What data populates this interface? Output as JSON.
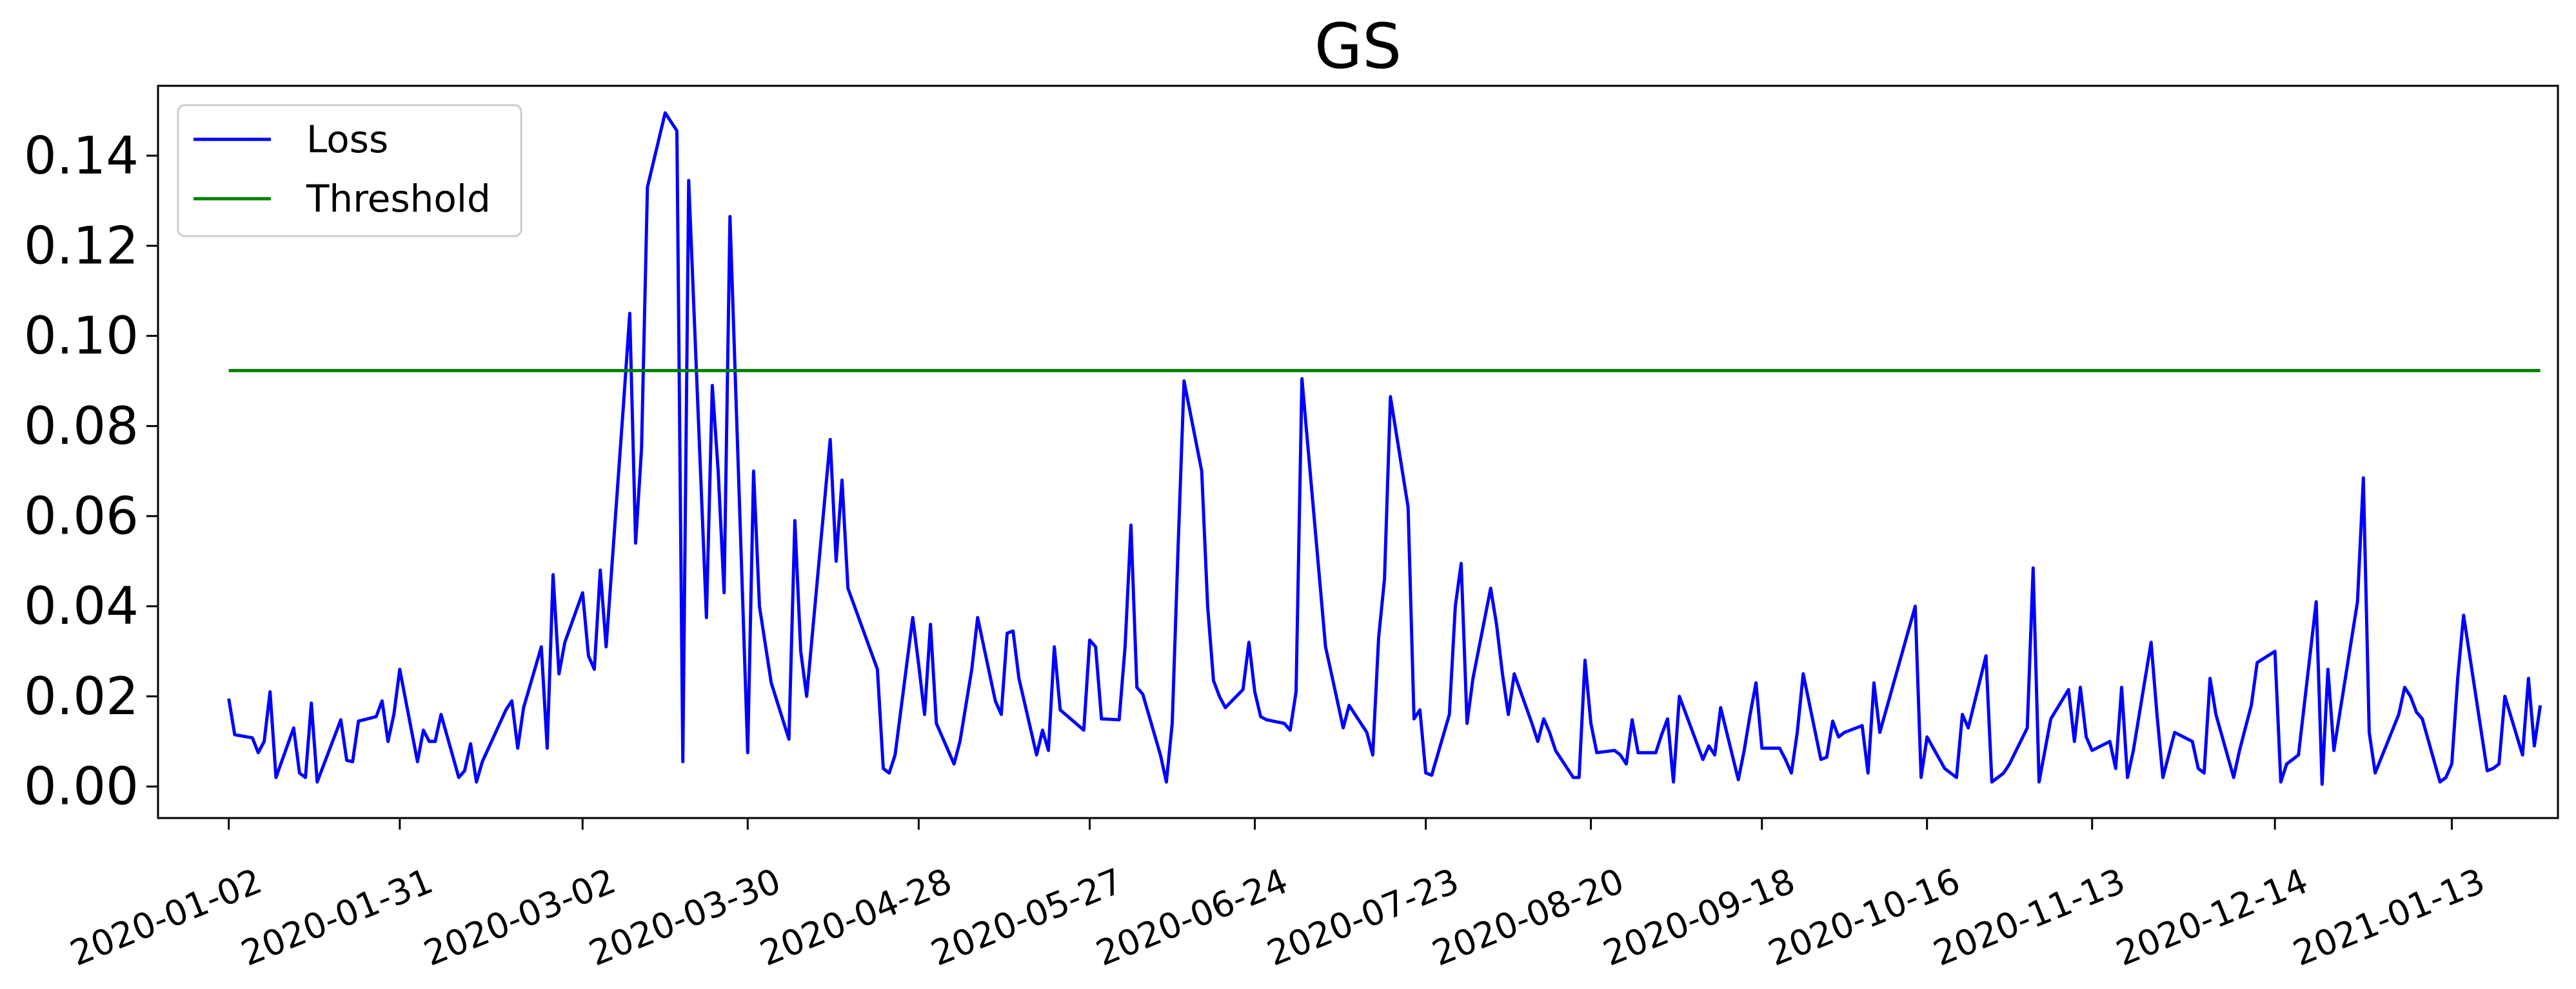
{
  "chart_data": {
    "type": "line",
    "title": "GS",
    "xlabel": "",
    "ylabel": "",
    "grid": false,
    "legend_position": "top-left",
    "ylim": [
      -0.007,
      0.1555
    ],
    "xlim": [
      "2019-12-21",
      "2021-01-31"
    ],
    "x_ticks": [
      "2020-01-02",
      "2020-01-31",
      "2020-03-02",
      "2020-03-30",
      "2020-04-28",
      "2020-05-27",
      "2020-06-24",
      "2020-07-23",
      "2020-08-20",
      "2020-09-18",
      "2020-10-16",
      "2020-11-13",
      "2020-12-14",
      "2021-01-13"
    ],
    "y_ticks": [
      "0.00",
      "0.02",
      "0.04",
      "0.06",
      "0.08",
      "0.10",
      "0.12",
      "0.14"
    ],
    "series": [
      {
        "name": "Loss",
        "color": "#0000ff",
        "points": [
          [
            "2020-01-02",
            0.0195
          ],
          [
            "2020-01-03",
            0.0115
          ],
          [
            "2020-01-06",
            0.0108
          ],
          [
            "2020-01-07",
            0.0075
          ],
          [
            "2020-01-08",
            0.01
          ],
          [
            "2020-01-09",
            0.021
          ],
          [
            "2020-01-10",
            0.002
          ],
          [
            "2020-01-13",
            0.013
          ],
          [
            "2020-01-14",
            0.003
          ],
          [
            "2020-01-15",
            0.002
          ],
          [
            "2020-01-16",
            0.0185
          ],
          [
            "2020-01-17",
            0.001
          ],
          [
            "2020-01-21",
            0.0148
          ],
          [
            "2020-01-22",
            0.0058
          ],
          [
            "2020-01-23",
            0.0055
          ],
          [
            "2020-01-24",
            0.0145
          ],
          [
            "2020-01-27",
            0.0155
          ],
          [
            "2020-01-28",
            0.019
          ],
          [
            "2020-01-29",
            0.01
          ],
          [
            "2020-01-30",
            0.016
          ],
          [
            "2020-01-31",
            0.026
          ],
          [
            "2020-02-03",
            0.0055
          ],
          [
            "2020-02-04",
            0.0125
          ],
          [
            "2020-02-05",
            0.01
          ],
          [
            "2020-02-06",
            0.01
          ],
          [
            "2020-02-07",
            0.016
          ],
          [
            "2020-02-10",
            0.002
          ],
          [
            "2020-02-11",
            0.0035
          ],
          [
            "2020-02-12",
            0.0095
          ],
          [
            "2020-02-13",
            0.001
          ],
          [
            "2020-02-14",
            0.0055
          ],
          [
            "2020-02-18",
            0.017
          ],
          [
            "2020-02-19",
            0.019
          ],
          [
            "2020-02-20",
            0.0085
          ],
          [
            "2020-02-21",
            0.0175
          ],
          [
            "2020-02-24",
            0.031
          ],
          [
            "2020-02-25",
            0.0085
          ],
          [
            "2020-02-26",
            0.047
          ],
          [
            "2020-02-27",
            0.025
          ],
          [
            "2020-02-28",
            0.032
          ],
          [
            "2020-03-02",
            0.043
          ],
          [
            "2020-03-03",
            0.029
          ],
          [
            "2020-03-04",
            0.026
          ],
          [
            "2020-03-05",
            0.048
          ],
          [
            "2020-03-06",
            0.031
          ],
          [
            "2020-03-09",
            0.086
          ],
          [
            "2020-03-10",
            0.105
          ],
          [
            "2020-03-11",
            0.054
          ],
          [
            "2020-03-12",
            0.075
          ],
          [
            "2020-03-13",
            0.133
          ],
          [
            "2020-03-16",
            0.1495
          ],
          [
            "2020-03-18",
            0.1455
          ],
          [
            "2020-03-19",
            0.0055
          ],
          [
            "2020-03-20",
            0.1345
          ],
          [
            "2020-03-23",
            0.0375
          ],
          [
            "2020-03-24",
            0.089
          ],
          [
            "2020-03-25",
            0.07
          ],
          [
            "2020-03-26",
            0.043
          ],
          [
            "2020-03-27",
            0.1265
          ],
          [
            "2020-03-30",
            0.0075
          ],
          [
            "2020-03-31",
            0.07
          ],
          [
            "2020-04-01",
            0.04
          ],
          [
            "2020-04-03",
            0.023
          ],
          [
            "2020-04-06",
            0.0105
          ],
          [
            "2020-04-07",
            0.059
          ],
          [
            "2020-04-08",
            0.03
          ],
          [
            "2020-04-09",
            0.02
          ],
          [
            "2020-04-13",
            0.077
          ],
          [
            "2020-04-14",
            0.05
          ],
          [
            "2020-04-15",
            0.068
          ],
          [
            "2020-04-16",
            0.044
          ],
          [
            "2020-04-21",
            0.026
          ],
          [
            "2020-04-22",
            0.004
          ],
          [
            "2020-04-23",
            0.003
          ],
          [
            "2020-04-24",
            0.007
          ],
          [
            "2020-04-27",
            0.0375
          ],
          [
            "2020-04-28",
            0.027
          ],
          [
            "2020-04-29",
            0.016
          ],
          [
            "2020-04-30",
            0.036
          ],
          [
            "2020-05-01",
            0.014
          ],
          [
            "2020-05-04",
            0.005
          ],
          [
            "2020-05-05",
            0.01
          ],
          [
            "2020-05-07",
            0.026
          ],
          [
            "2020-05-08",
            0.0375
          ],
          [
            "2020-05-11",
            0.019
          ],
          [
            "2020-05-12",
            0.016
          ],
          [
            "2020-05-13",
            0.034
          ],
          [
            "2020-05-14",
            0.0345
          ],
          [
            "2020-05-15",
            0.024
          ],
          [
            "2020-05-18",
            0.007
          ],
          [
            "2020-05-19",
            0.0125
          ],
          [
            "2020-05-20",
            0.008
          ],
          [
            "2020-05-21",
            0.031
          ],
          [
            "2020-05-22",
            0.017
          ],
          [
            "2020-05-26",
            0.0125
          ],
          [
            "2020-05-27",
            0.0325
          ],
          [
            "2020-05-28",
            0.031
          ],
          [
            "2020-05-29",
            0.015
          ],
          [
            "2020-06-01",
            0.0148
          ],
          [
            "2020-06-02",
            0.031
          ],
          [
            "2020-06-03",
            0.058
          ],
          [
            "2020-06-04",
            0.022
          ],
          [
            "2020-06-05",
            0.0205
          ],
          [
            "2020-06-08",
            0.007
          ],
          [
            "2020-06-09",
            0.001
          ],
          [
            "2020-06-10",
            0.014
          ],
          [
            "2020-06-11",
            0.0535
          ],
          [
            "2020-06-12",
            0.09
          ],
          [
            "2020-06-15",
            0.07
          ],
          [
            "2020-06-16",
            0.04
          ],
          [
            "2020-06-17",
            0.0235
          ],
          [
            "2020-06-18",
            0.02
          ],
          [
            "2020-06-19",
            0.0175
          ],
          [
            "2020-06-22",
            0.0215
          ],
          [
            "2020-06-23",
            0.032
          ],
          [
            "2020-06-24",
            0.021
          ],
          [
            "2020-06-25",
            0.0155
          ],
          [
            "2020-06-26",
            0.0148
          ],
          [
            "2020-06-29",
            0.014
          ],
          [
            "2020-06-30",
            0.0125
          ],
          [
            "2020-07-01",
            0.021
          ],
          [
            "2020-07-02",
            0.0905
          ],
          [
            "2020-07-06",
            0.031
          ],
          [
            "2020-07-07",
            0.025
          ],
          [
            "2020-07-08",
            0.019
          ],
          [
            "2020-07-09",
            0.013
          ],
          [
            "2020-07-10",
            0.018
          ],
          [
            "2020-07-13",
            0.012
          ],
          [
            "2020-07-14",
            0.007
          ],
          [
            "2020-07-15",
            0.033
          ],
          [
            "2020-07-16",
            0.046
          ],
          [
            "2020-07-17",
            0.0865
          ],
          [
            "2020-07-20",
            0.062
          ],
          [
            "2020-07-21",
            0.015
          ],
          [
            "2020-07-22",
            0.017
          ],
          [
            "2020-07-23",
            0.003
          ],
          [
            "2020-07-24",
            0.0025
          ],
          [
            "2020-07-27",
            0.016
          ],
          [
            "2020-07-28",
            0.04
          ],
          [
            "2020-07-29",
            0.0495
          ],
          [
            "2020-07-30",
            0.014
          ],
          [
            "2020-07-31",
            0.024
          ],
          [
            "2020-08-03",
            0.044
          ],
          [
            "2020-08-04",
            0.036
          ],
          [
            "2020-08-05",
            0.025
          ],
          [
            "2020-08-06",
            0.016
          ],
          [
            "2020-08-07",
            0.025
          ],
          [
            "2020-08-10",
            0.014
          ],
          [
            "2020-08-11",
            0.01
          ],
          [
            "2020-08-12",
            0.015
          ],
          [
            "2020-08-13",
            0.012
          ],
          [
            "2020-08-14",
            0.008
          ],
          [
            "2020-08-17",
            0.002
          ],
          [
            "2020-08-18",
            0.002
          ],
          [
            "2020-08-19",
            0.028
          ],
          [
            "2020-08-20",
            0.014
          ],
          [
            "2020-08-21",
            0.0075
          ],
          [
            "2020-08-24",
            0.008
          ],
          [
            "2020-08-25",
            0.007
          ],
          [
            "2020-08-26",
            0.005
          ],
          [
            "2020-08-27",
            0.0148
          ],
          [
            "2020-08-28",
            0.0075
          ],
          [
            "2020-08-31",
            0.0075
          ],
          [
            "2020-09-01",
            0.0115
          ],
          [
            "2020-09-02",
            0.015
          ],
          [
            "2020-09-03",
            0.001
          ],
          [
            "2020-09-04",
            0.02
          ],
          [
            "2020-09-08",
            0.006
          ],
          [
            "2020-09-09",
            0.009
          ],
          [
            "2020-09-10",
            0.007
          ],
          [
            "2020-09-11",
            0.0175
          ],
          [
            "2020-09-14",
            0.0015
          ],
          [
            "2020-09-15",
            0.008
          ],
          [
            "2020-09-16",
            0.016
          ],
          [
            "2020-09-17",
            0.023
          ],
          [
            "2020-09-18",
            0.0085
          ],
          [
            "2020-09-21",
            0.0085
          ],
          [
            "2020-09-22",
            0.006
          ],
          [
            "2020-09-23",
            0.003
          ],
          [
            "2020-09-24",
            0.012
          ],
          [
            "2020-09-25",
            0.025
          ],
          [
            "2020-09-28",
            0.006
          ],
          [
            "2020-09-29",
            0.0065
          ],
          [
            "2020-09-30",
            0.0145
          ],
          [
            "2020-10-01",
            0.011
          ],
          [
            "2020-10-02",
            0.012
          ],
          [
            "2020-10-05",
            0.0135
          ],
          [
            "2020-10-06",
            0.003
          ],
          [
            "2020-10-07",
            0.023
          ],
          [
            "2020-10-08",
            0.012
          ],
          [
            "2020-10-14",
            0.04
          ],
          [
            "2020-10-15",
            0.002
          ],
          [
            "2020-10-16",
            0.011
          ],
          [
            "2020-10-19",
            0.004
          ],
          [
            "2020-10-20",
            0.003
          ],
          [
            "2020-10-21",
            0.002
          ],
          [
            "2020-10-22",
            0.016
          ],
          [
            "2020-10-23",
            0.013
          ],
          [
            "2020-10-26",
            0.029
          ],
          [
            "2020-10-27",
            0.001
          ],
          [
            "2020-10-28",
            0.002
          ],
          [
            "2020-10-29",
            0.003
          ],
          [
            "2020-10-30",
            0.005
          ],
          [
            "2020-11-02",
            0.013
          ],
          [
            "2020-11-03",
            0.0485
          ],
          [
            "2020-11-04",
            0.001
          ],
          [
            "2020-11-05",
            0.008
          ],
          [
            "2020-11-06",
            0.015
          ],
          [
            "2020-11-09",
            0.0215
          ],
          [
            "2020-11-10",
            0.01
          ],
          [
            "2020-11-11",
            0.022
          ],
          [
            "2020-11-12",
            0.011
          ],
          [
            "2020-11-13",
            0.008
          ],
          [
            "2020-11-16",
            0.01
          ],
          [
            "2020-11-17",
            0.004
          ],
          [
            "2020-11-18",
            0.022
          ],
          [
            "2020-11-19",
            0.002
          ],
          [
            "2020-11-20",
            0.008
          ],
          [
            "2020-11-23",
            0.032
          ],
          [
            "2020-11-24",
            0.016
          ],
          [
            "2020-11-25",
            0.002
          ],
          [
            "2020-11-27",
            0.012
          ],
          [
            "2020-11-30",
            0.01
          ],
          [
            "2020-12-01",
            0.004
          ],
          [
            "2020-12-02",
            0.003
          ],
          [
            "2020-12-03",
            0.024
          ],
          [
            "2020-12-04",
            0.016
          ],
          [
            "2020-12-07",
            0.002
          ],
          [
            "2020-12-08",
            0.008
          ],
          [
            "2020-12-09",
            0.013
          ],
          [
            "2020-12-10",
            0.018
          ],
          [
            "2020-12-11",
            0.0275
          ],
          [
            "2020-12-14",
            0.03
          ],
          [
            "2020-12-15",
            0.001
          ],
          [
            "2020-12-16",
            0.005
          ],
          [
            "2020-12-17",
            0.006
          ],
          [
            "2020-12-18",
            0.007
          ],
          [
            "2020-12-21",
            0.041
          ],
          [
            "2020-12-22",
            0.0005
          ],
          [
            "2020-12-23",
            0.026
          ],
          [
            "2020-12-24",
            0.008
          ],
          [
            "2020-12-28",
            0.041
          ],
          [
            "2020-12-29",
            0.0685
          ],
          [
            "2020-12-30",
            0.012
          ],
          [
            "2020-12-31",
            0.003
          ],
          [
            "2021-01-04",
            0.016
          ],
          [
            "2021-01-05",
            0.022
          ],
          [
            "2021-01-06",
            0.02
          ],
          [
            "2021-01-07",
            0.0165
          ],
          [
            "2021-01-08",
            0.015
          ],
          [
            "2021-01-11",
            0.001
          ],
          [
            "2021-01-12",
            0.002
          ],
          [
            "2021-01-13",
            0.005
          ],
          [
            "2021-01-14",
            0.024
          ],
          [
            "2021-01-15",
            0.038
          ],
          [
            "2021-01-19",
            0.0035
          ],
          [
            "2021-01-20",
            0.004
          ],
          [
            "2021-01-21",
            0.005
          ],
          [
            "2021-01-22",
            0.02
          ],
          [
            "2021-01-25",
            0.007
          ],
          [
            "2021-01-26",
            0.024
          ],
          [
            "2021-01-27",
            0.009
          ],
          [
            "2021-01-28",
            0.018
          ]
        ]
      },
      {
        "name": "Threshold",
        "color": "#008000",
        "points": [
          [
            "2020-01-02",
            0.0923
          ],
          [
            "2021-01-28",
            0.0923
          ]
        ]
      }
    ]
  }
}
